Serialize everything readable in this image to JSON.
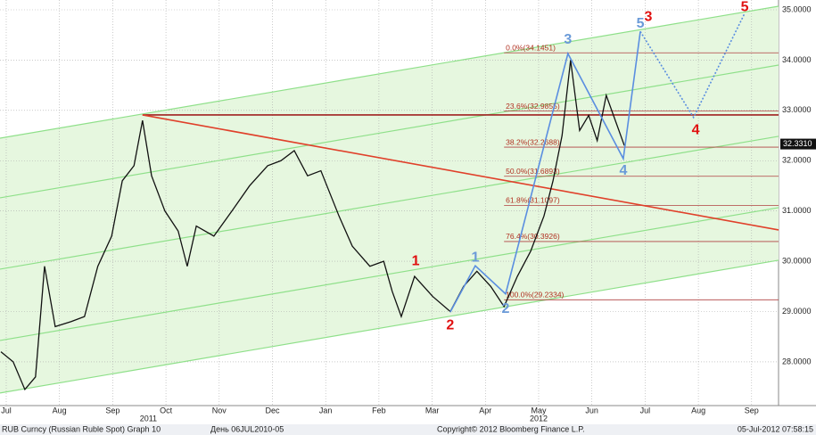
{
  "chart_data": {
    "type": "line",
    "xlim": [
      -0.117,
      14.506
    ],
    "ylim": [
      27.13,
      35.195
    ],
    "categories": [
      "Jul",
      "Aug",
      "Sep",
      "Oct",
      "Nov",
      "Dec",
      "Jan",
      "Feb",
      "Mar",
      "Apr",
      "May",
      "Jun",
      "Jul",
      "Aug",
      "Sep"
    ],
    "year_labels": [
      {
        "text": "2011",
        "x": 2.67
      },
      {
        "text": "2012",
        "x": 10.0
      }
    ],
    "yticks": [
      {
        "value": 28,
        "label": "28.0000"
      },
      {
        "value": 29,
        "label": "29.0000"
      },
      {
        "value": 30,
        "label": "30.0000"
      },
      {
        "value": 31,
        "label": "31.0000"
      },
      {
        "value": 32,
        "label": "32.0000"
      },
      {
        "value": 33,
        "label": "33.0000"
      },
      {
        "value": 34,
        "label": "34.0000"
      },
      {
        "value": 35,
        "label": "35.0000"
      }
    ],
    "grid": true,
    "series": [
      {
        "name": "RUB Curncy",
        "color": "#111111",
        "x": [
          -0.1,
          0.13,
          0.35,
          0.55,
          0.72,
          0.92,
          1.22,
          1.47,
          1.72,
          1.98,
          2.18,
          2.4,
          2.56,
          2.73,
          2.98,
          3.23,
          3.4,
          3.57,
          3.9,
          4.24,
          4.57,
          4.91,
          5.16,
          5.41,
          5.66,
          5.91,
          6.25,
          6.5,
          6.83,
          7.09,
          7.25,
          7.42,
          7.67,
          8.01,
          8.34,
          8.59,
          8.84,
          9.1,
          9.35,
          9.6,
          9.85,
          10.1,
          10.27,
          10.44,
          10.6,
          10.77,
          10.94,
          11.1,
          11.27,
          11.44,
          11.61
        ],
        "values": [
          28.2,
          28.0,
          27.45,
          27.7,
          29.9,
          28.7,
          28.8,
          28.9,
          29.9,
          30.5,
          31.6,
          31.9,
          32.8,
          31.7,
          31.0,
          30.6,
          29.9,
          30.7,
          30.5,
          31.0,
          31.5,
          31.9,
          32.0,
          32.2,
          31.7,
          31.8,
          30.9,
          30.3,
          29.9,
          30.0,
          29.4,
          28.9,
          29.7,
          29.3,
          29.0,
          29.5,
          29.8,
          29.5,
          29.1,
          29.7,
          30.2,
          30.9,
          31.6,
          32.5,
          34.0,
          32.6,
          32.9,
          32.4,
          33.3,
          32.8,
          32.3
        ]
      }
    ],
    "last_price": {
      "value": 32.331,
      "label": "32.3310"
    },
    "channel_lines": [
      [
        32.448,
        35.071
      ],
      [
        31.261,
        33.901
      ],
      [
        29.843,
        32.484
      ],
      [
        28.425,
        31.066
      ],
      [
        27.38,
        30.02
      ]
    ],
    "trend_line": {
      "x": [
        2.56,
        14.506
      ],
      "values": [
        32.909,
        30.623
      ]
    },
    "resistance_line": {
      "x": [
        2.56,
        14.506
      ],
      "values": [
        32.909,
        32.909
      ]
    },
    "fib_start": 9.35,
    "fib_levels": [
      {
        "value": 34.1451,
        "label": "0.0%(34.1451)"
      },
      {
        "value": 32.9855,
        "label": "23.6%(32.9855)"
      },
      {
        "value": 32.2688,
        "label": "38.2%(32.2688)"
      },
      {
        "value": 31.6893,
        "label": "50.0%(31.6893)"
      },
      {
        "value": 31.1097,
        "label": "61.8%(31.1097)"
      },
      {
        "value": 30.3926,
        "label": "76.4%(30.3926)"
      },
      {
        "value": 29.2334,
        "label": "100.0%(29.2334)"
      }
    ],
    "wave_path": {
      "x": [
        8.34,
        8.81,
        9.38,
        10.55,
        11.59,
        11.91
      ],
      "values": [
        28.99,
        29.91,
        29.35,
        34.13,
        32.04,
        34.57
      ]
    },
    "wave_projection": {
      "x": [
        11.91,
        12.91,
        13.87
      ],
      "values": [
        34.57,
        32.86,
        34.93
      ]
    },
    "blue_labels": [
      {
        "text": "1",
        "x": 8.81,
        "y": 30.07
      },
      {
        "text": "2",
        "x": 9.38,
        "y": 29.05
      },
      {
        "text": "3",
        "x": 10.55,
        "y": 34.4
      },
      {
        "text": "4",
        "x": 11.59,
        "y": 31.8
      },
      {
        "text": "5",
        "x": 11.91,
        "y": 34.72
      }
    ],
    "red_labels": [
      {
        "text": "1",
        "x": 7.69,
        "y": 30.0
      },
      {
        "text": "2",
        "x": 8.34,
        "y": 28.72
      },
      {
        "text": "3",
        "x": 12.06,
        "y": 34.85
      },
      {
        "text": "4",
        "x": 12.95,
        "y": 32.6
      },
      {
        "text": "5",
        "x": 13.87,
        "y": 35.05
      }
    ],
    "footer": {
      "left": "RUB Curncy (Russian Ruble Spot) Graph 10",
      "period": "День 06JUL2010-05",
      "copyright": "Copyright© 2012 Bloomberg Finance L.P.",
      "timestamp": "05-Jul-2012 07:58:15"
    }
  }
}
